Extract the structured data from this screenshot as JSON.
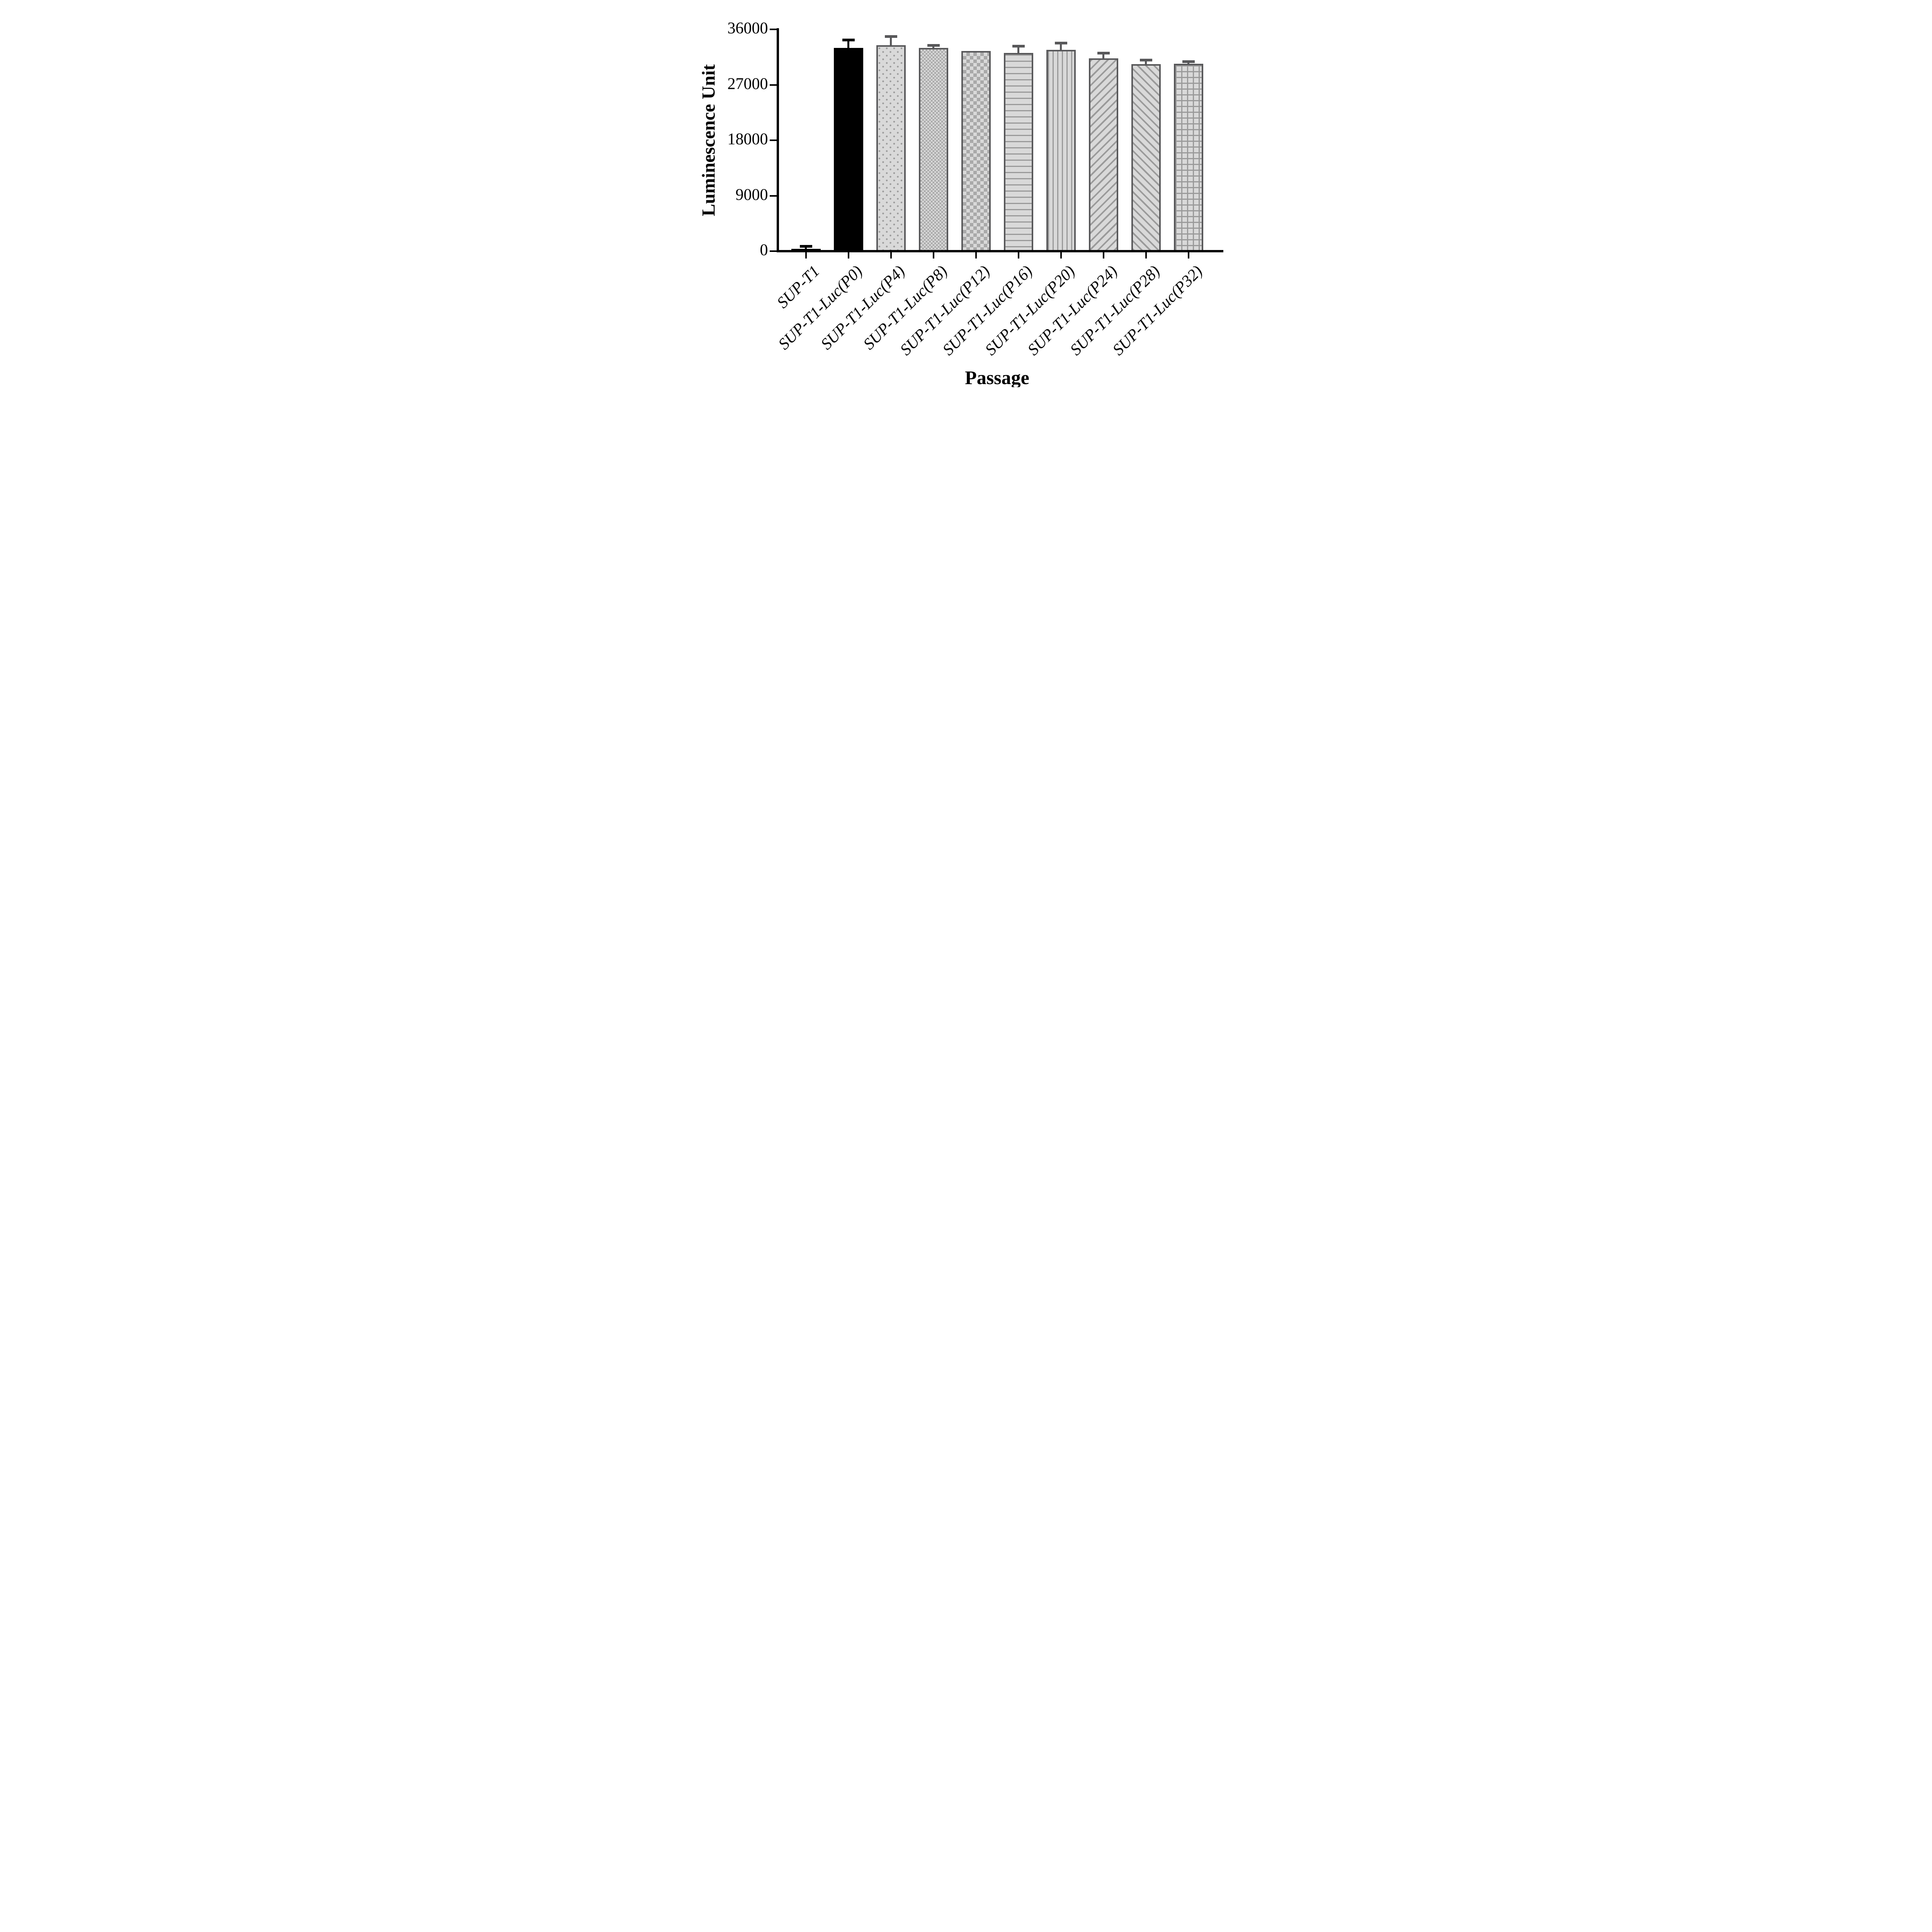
{
  "style": {
    "background": "#ffffff",
    "axis_color": "#000000",
    "text_color": "#000000",
    "bar_fill": "#d9d9d9",
    "pattern_ink": "#9a9a9a",
    "bar_border": "#58585a",
    "black_bar": "#000000"
  },
  "chart_data": {
    "type": "bar",
    "title": "",
    "xlabel": "Passage",
    "ylabel": "Luminescence Unit",
    "ylim": [
      0,
      36000
    ],
    "yticks": [
      0,
      9000,
      18000,
      27000,
      36000
    ],
    "ytick_labels": [
      "0",
      "9000",
      "18000",
      "27000",
      "36000"
    ],
    "grid": "off",
    "legend": "none",
    "categories": [
      "SUP-T1",
      "SUP-T1-Luc(P0)",
      "SUP-T1-Luc(P4)",
      "SUP-T1-Luc(P8)",
      "SUP-T1-Luc(P12)",
      "SUP-T1-Luc(P16)",
      "SUP-T1-Luc(P20)",
      "SUP-T1-Luc(P24)",
      "SUP-T1-Luc(P28)",
      "SUP-T1-Luc(P32)"
    ],
    "values": [
      400,
      33000,
      33450,
      33000,
      32500,
      32200,
      32650,
      31300,
      30350,
      30400
    ],
    "errors": [
      150,
      1050,
      1200,
      200,
      0,
      880,
      880,
      600,
      420,
      120
    ],
    "error_type": "SD, upper whisker only",
    "patterns": [
      "solid",
      "solid",
      "dots",
      "checker-small",
      "checker-large",
      "horizontal-lines",
      "vertical-lines",
      "diagonal-forward",
      "diagonal-back",
      "grid"
    ]
  }
}
